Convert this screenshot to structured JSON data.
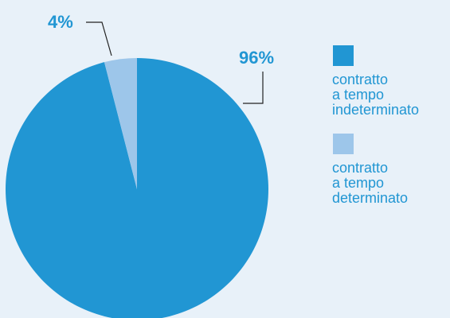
{
  "chart_data": {
    "type": "pie",
    "slices": [
      {
        "label": "contratto\na tempo\nindeterminato",
        "value": 96,
        "value_label": "96%",
        "color": "#2196d3"
      },
      {
        "label": "contratto\na tempo\ndeterminato",
        "value": 4,
        "value_label": "4%",
        "color": "#9dc6ea"
      }
    ],
    "legend_position": "right",
    "label_color": "#2196d3",
    "leader_color": "#222222"
  }
}
